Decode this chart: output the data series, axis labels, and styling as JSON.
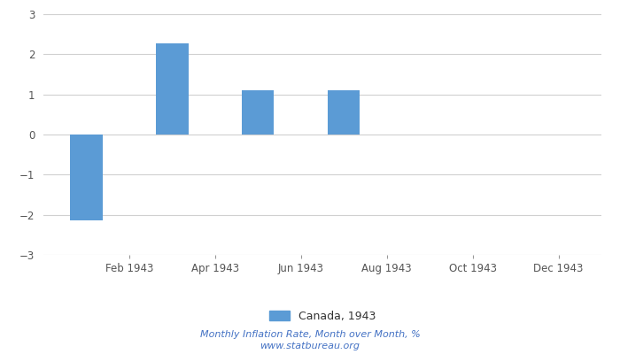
{
  "month_nums": [
    1,
    2,
    3,
    4,
    5,
    6,
    7,
    8,
    9,
    10,
    11,
    12
  ],
  "values": [
    -2.13,
    0.0,
    2.27,
    0.0,
    1.1,
    0.0,
    1.1,
    0.0,
    0.0,
    0.0,
    0.0,
    0.0
  ],
  "bar_color": "#5b9bd5",
  "ylim": [
    -3,
    3
  ],
  "yticks": [
    -3,
    -2,
    -1,
    0,
    1,
    2,
    3
  ],
  "xtick_labels": [
    "Feb 1943",
    "Apr 1943",
    "Jun 1943",
    "Aug 1943",
    "Oct 1943",
    "Dec 1943"
  ],
  "xtick_positions": [
    2,
    4,
    6,
    8,
    10,
    12
  ],
  "xlim": [
    0,
    13
  ],
  "legend_label": "Canada, 1943",
  "footnote_line1": "Monthly Inflation Rate, Month over Month, %",
  "footnote_line2": "www.statbureau.org",
  "background_color": "#ffffff",
  "grid_color": "#d0d0d0",
  "bar_width": 0.75,
  "tick_label_color": "#555555",
  "footnote_color": "#4472c4",
  "legend_text_color": "#333333"
}
